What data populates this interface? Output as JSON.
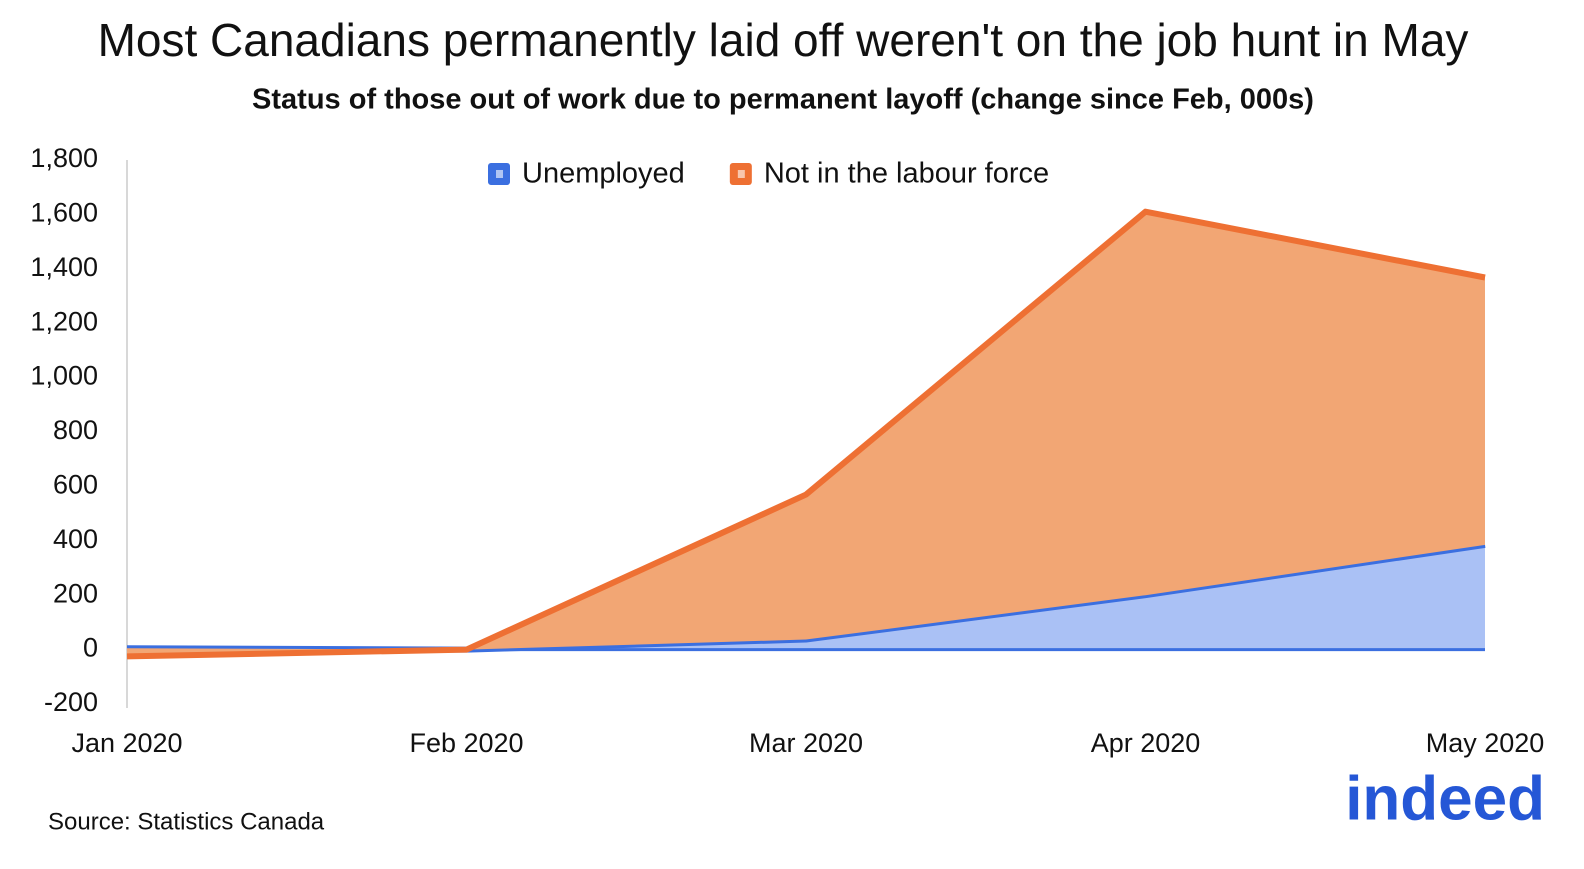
{
  "chart_data": {
    "type": "area",
    "stacked": true,
    "title": "Most Canadians permanently laid off weren't on the job hunt in May",
    "subtitle": "Status of those out of work due to permanent layoff (change since Feb, 000s)",
    "categories": [
      "Jan 2020",
      "Feb 2020",
      "Mar 2020",
      "Apr 2020",
      "May 2020"
    ],
    "series": [
      {
        "name": "Unemployed",
        "color": "#3b6fe0",
        "values": [
          5,
          0,
          37,
          200,
          385
        ]
      },
      {
        "name": "Not in the labour force",
        "color": "#ee7033",
        "values": [
          -30,
          0,
          533,
          1410,
          983
        ]
      }
    ],
    "ylim": [
      -200,
      1800
    ],
    "yticks": [
      {
        "value": -200,
        "label": "-200"
      },
      0,
      200,
      400,
      600,
      800,
      {
        "value": 1000,
        "label": "1,000"
      },
      {
        "value": 1200,
        "label": "1,200"
      },
      {
        "value": 1400,
        "label": "1,400"
      },
      {
        "value": 1600,
        "label": "1,600"
      },
      {
        "value": 1800,
        "label": "1,800"
      }
    ],
    "legend": "top",
    "source": "Source: Statistics Canada",
    "logo": "indeed"
  }
}
